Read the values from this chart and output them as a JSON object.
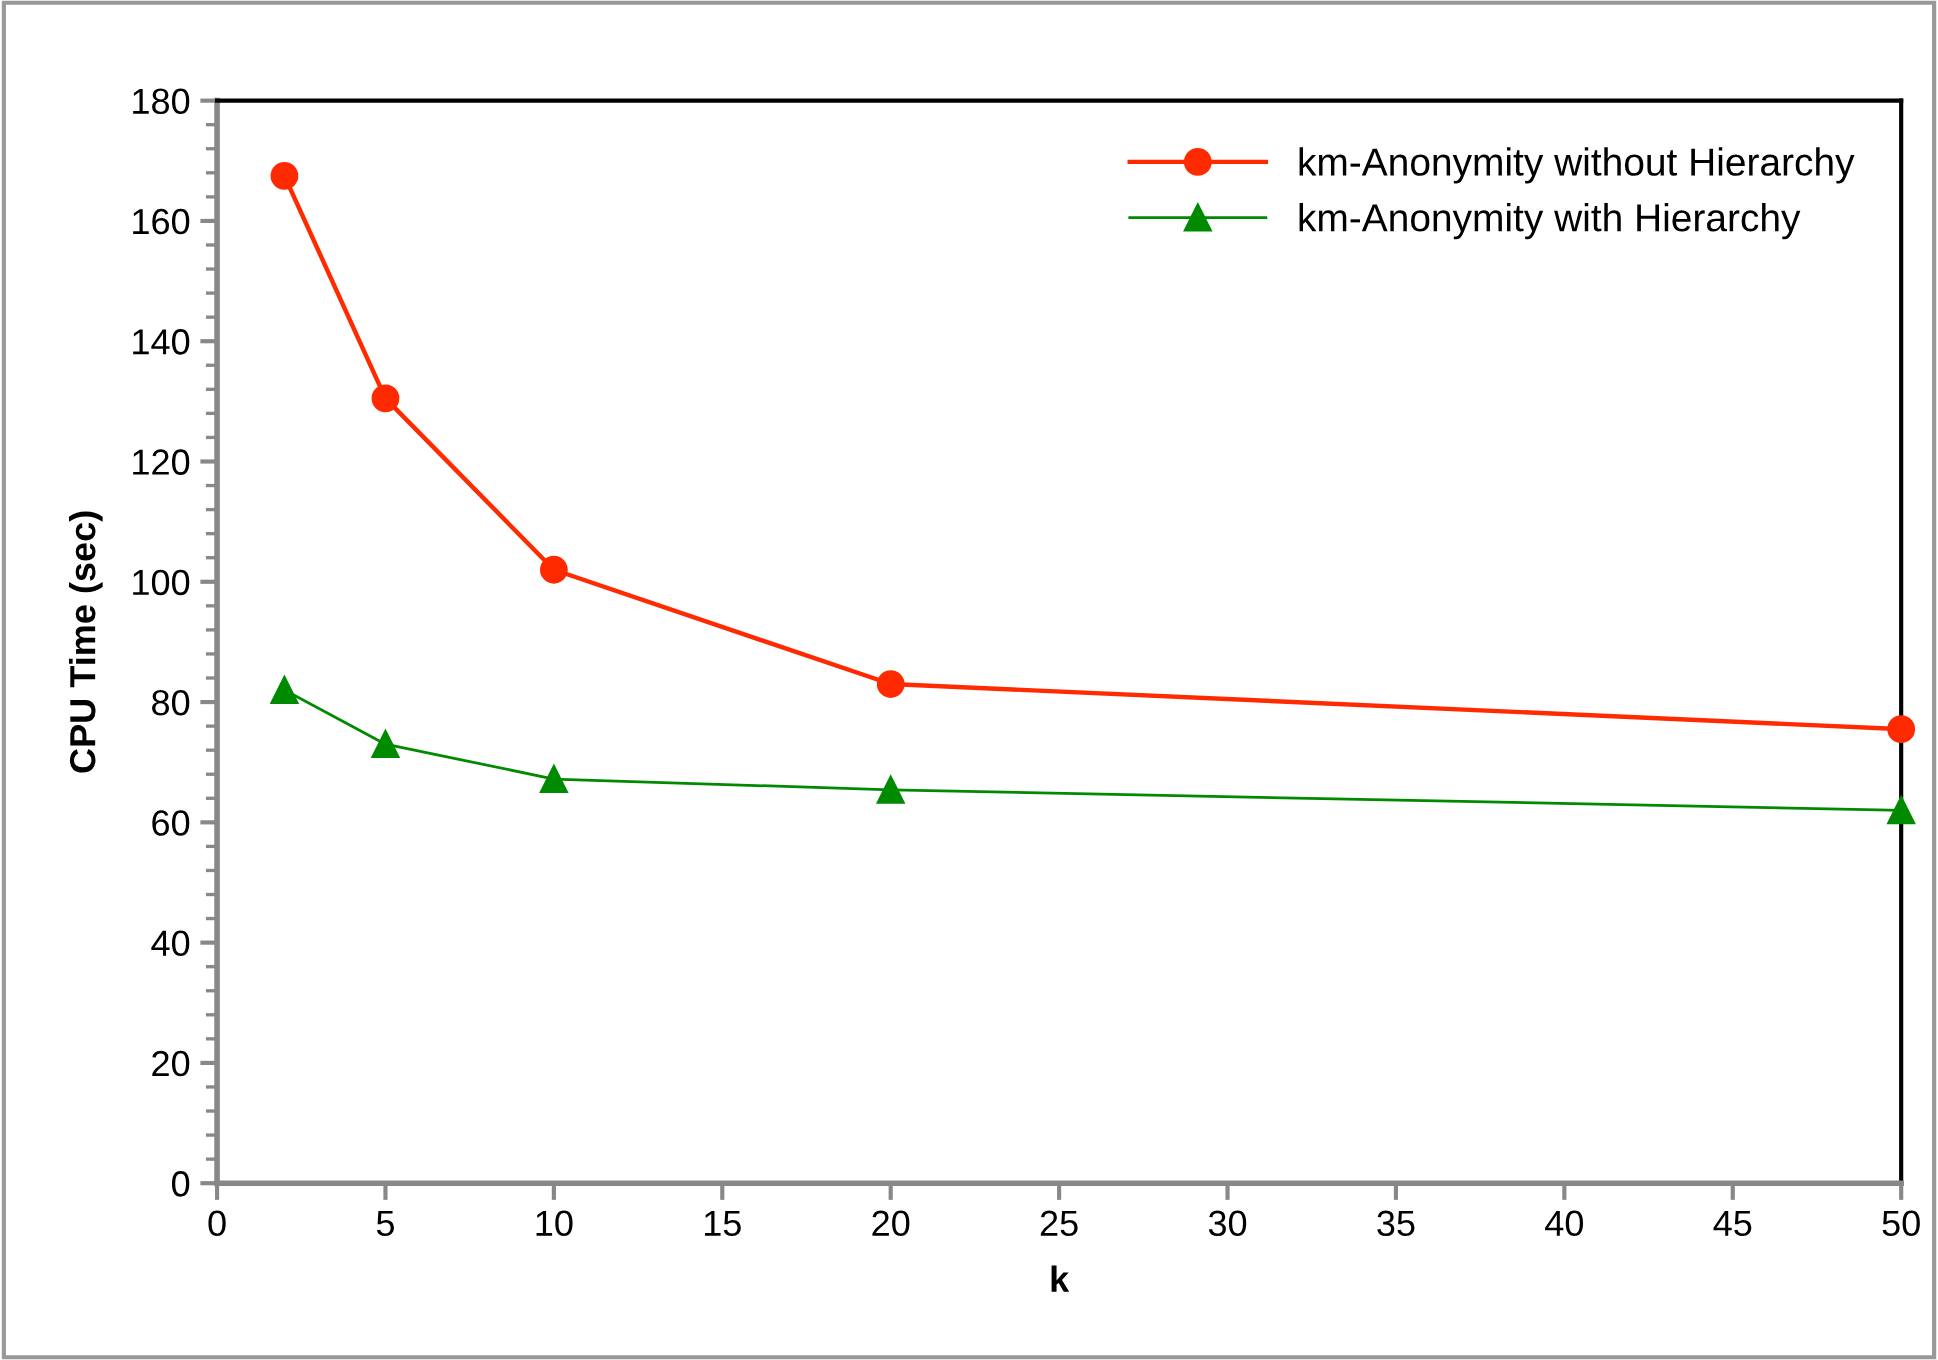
{
  "chart_data": {
    "type": "line",
    "xlabel": "k",
    "ylabel": "CPU Time (sec)",
    "x": [
      2,
      5,
      10,
      20,
      50
    ],
    "series": [
      {
        "name": "km-Anonymity without Hierarchy",
        "color": "#ff2a00",
        "values": [
          167.5,
          130.5,
          102,
          83,
          75.5
        ],
        "marker": "circle"
      },
      {
        "name": "km-Anonymity with Hierarchy",
        "color": "#008a00",
        "values": [
          82,
          73,
          67.2,
          65.4,
          62
        ],
        "marker": "triangle"
      }
    ],
    "xlim": [
      0,
      50
    ],
    "xticks": [
      0,
      5,
      10,
      15,
      20,
      25,
      30,
      35,
      40,
      45,
      50
    ],
    "ylim": [
      0,
      180
    ],
    "yticks": [
      0,
      20,
      40,
      60,
      80,
      100,
      120,
      140,
      160,
      180
    ],
    "grid": false,
    "legend": "top right",
    "line_style": "solid"
  }
}
